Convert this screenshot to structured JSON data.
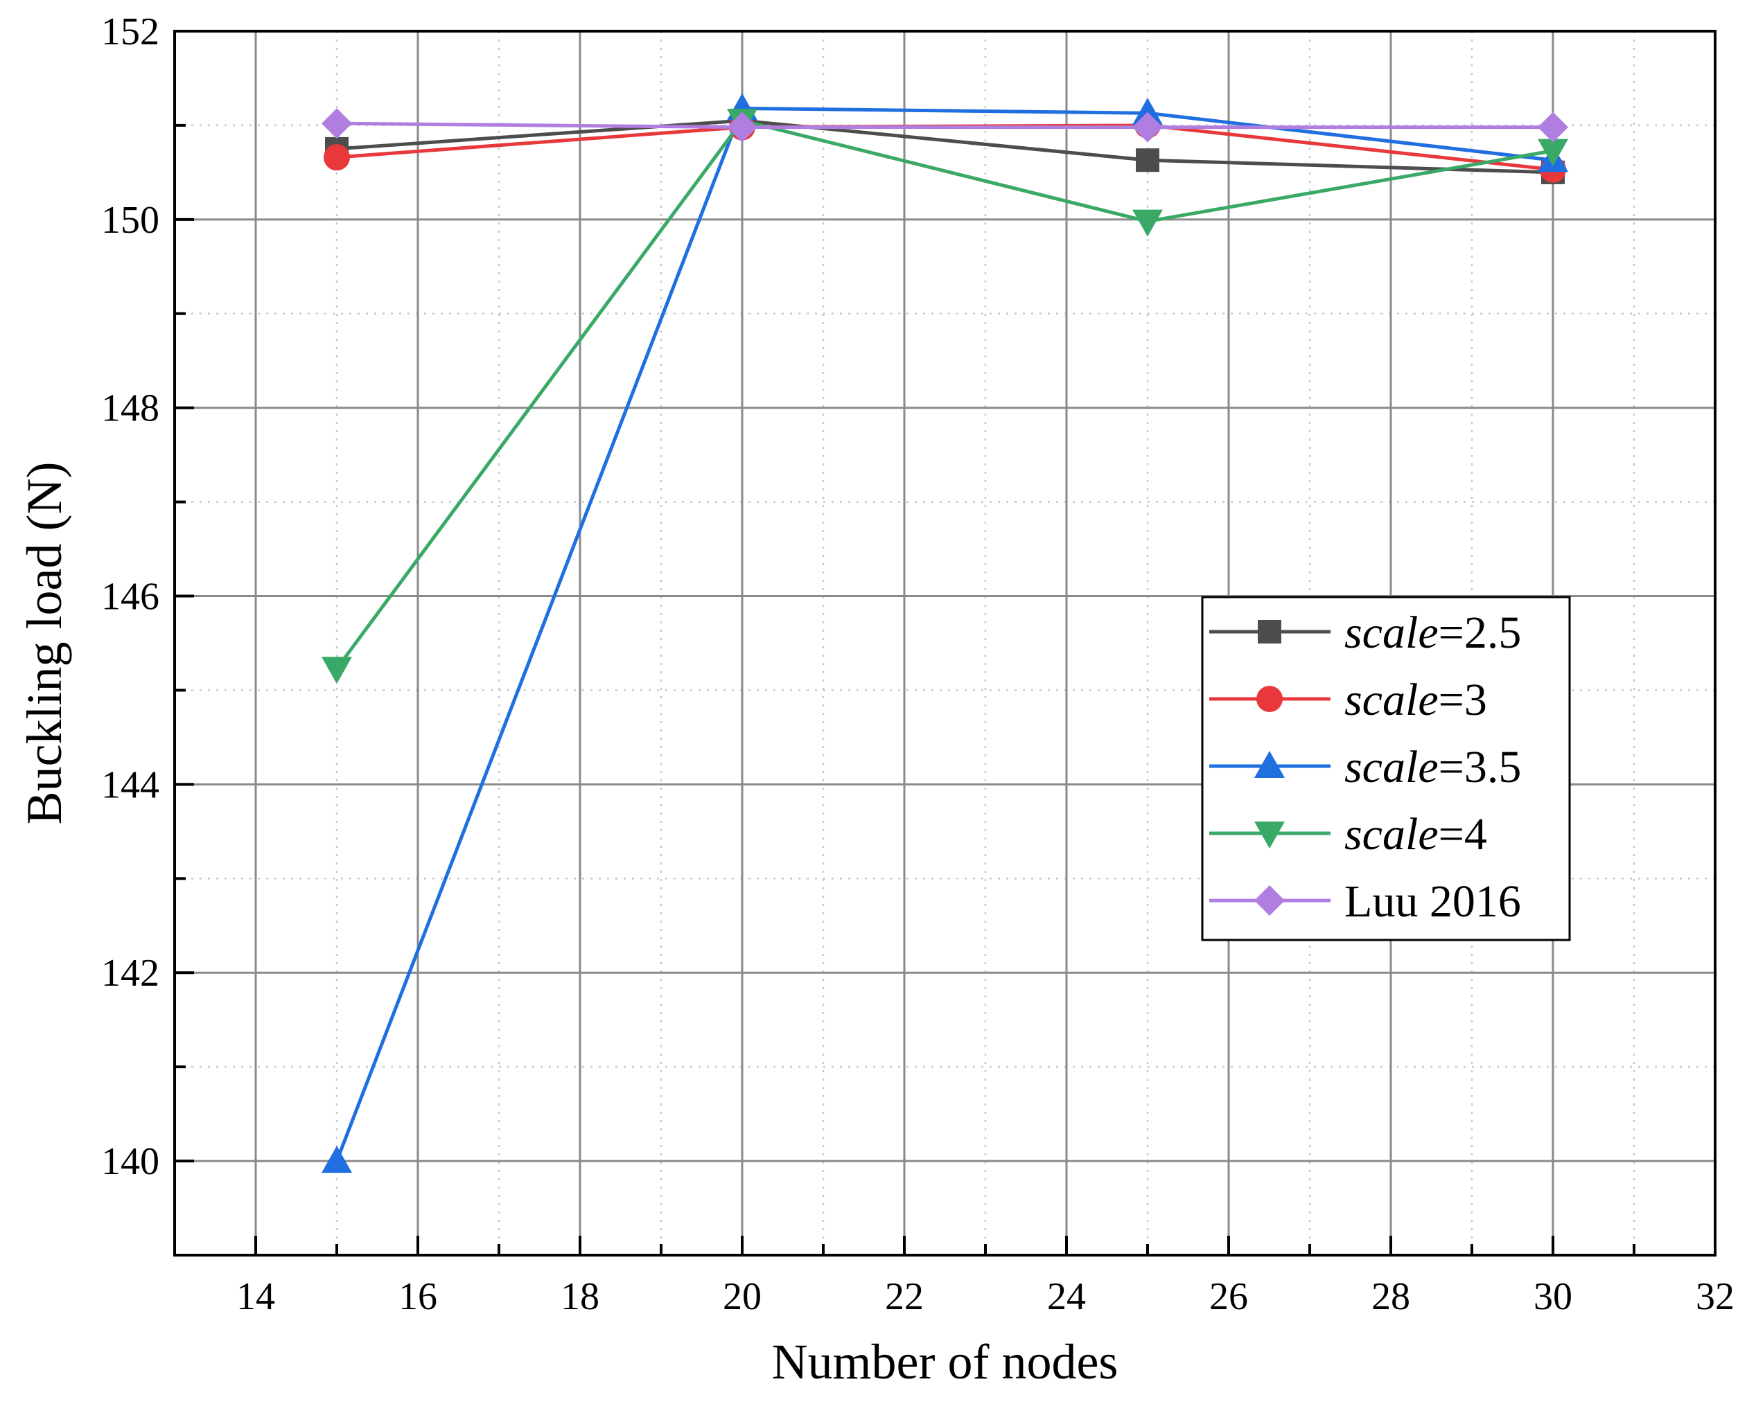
{
  "chart_data": {
    "type": "line",
    "title": "",
    "xlabel": "Number of nodes",
    "ylabel": "Buckling load (N)",
    "xlim": [
      13,
      32
    ],
    "ylim": [
      139,
      152
    ],
    "xticks": [
      14,
      16,
      18,
      20,
      22,
      24,
      26,
      28,
      30,
      32
    ],
    "yticks": [
      140,
      142,
      144,
      146,
      148,
      150,
      152
    ],
    "xtick_labels": [
      "14",
      "16",
      "18",
      "20",
      "22",
      "24",
      "26",
      "28",
      "30",
      "32"
    ],
    "ytick_labels": [
      "140",
      "142",
      "144",
      "146",
      "148",
      "150",
      "152"
    ],
    "grid": true,
    "legend_position": "center-right",
    "x": [
      15,
      20,
      25,
      30
    ],
    "series": [
      {
        "name": "scale=2.5",
        "name_italic": "scale",
        "name_rest": "=2.5",
        "color": "#4d4d4d",
        "marker": "square",
        "values": [
          150.75,
          151.05,
          150.63,
          150.5
        ]
      },
      {
        "name": "scale=3",
        "name_italic": "scale",
        "name_rest": "=3",
        "color": "#e8383b",
        "marker": "circle",
        "values": [
          150.66,
          150.98,
          151.0,
          150.53
        ]
      },
      {
        "name": "scale=3.5",
        "name_italic": "scale",
        "name_rest": "=3.5",
        "color": "#1f6fe0",
        "marker": "triangle-up",
        "values": [
          140.0,
          151.18,
          151.13,
          150.63
        ]
      },
      {
        "name": "scale=4",
        "name_italic": "scale",
        "name_rest": "=4",
        "color": "#3aa866",
        "marker": "triangle-down",
        "values": [
          145.23,
          151.05,
          149.98,
          150.73
        ]
      },
      {
        "name": "Luu 2016",
        "name_italic": "",
        "name_rest": "Luu 2016",
        "color": "#b07ee0",
        "marker": "diamond",
        "values": [
          151.02,
          150.98,
          150.98,
          150.98
        ]
      }
    ]
  }
}
